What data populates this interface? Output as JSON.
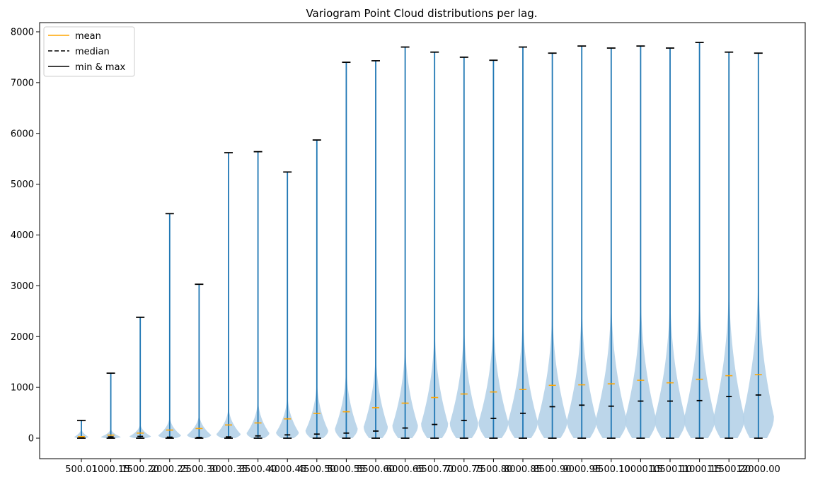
{
  "chart_data": {
    "type": "violin",
    "title": "Variogram Point Cloud distributions per lag.",
    "xlabel": "",
    "ylabel": "",
    "ylim": [
      -350,
      8200
    ],
    "yticks": [
      0,
      1000,
      2000,
      3000,
      4000,
      5000,
      6000,
      7000,
      8000
    ],
    "grid": false,
    "legend_position": "top-left",
    "legend": [
      {
        "label": "mean",
        "style": "solid",
        "color": "#ffa500"
      },
      {
        "label": "median",
        "style": "dashed",
        "color": "#000000"
      },
      {
        "label": "min & max",
        "style": "solid",
        "color": "#000000"
      }
    ],
    "colors": {
      "violin_body": "#b5d2e8",
      "center_line": "#1f77b4",
      "mean": "#ffa500",
      "median": "#000000",
      "extrema": "#000000"
    },
    "categories": [
      "500.01",
      "1000.15",
      "1500.20",
      "2000.25",
      "2500.30",
      "3000.35",
      "3500.40",
      "4000.45",
      "4500.50",
      "5000.55",
      "5500.60",
      "6000.65",
      "6500.70",
      "7000.75",
      "7500.80",
      "8000.85",
      "8500.90",
      "9000.95",
      "9500.10",
      "10000.15",
      "10500.10",
      "11000.15",
      "11500.20",
      "12000.00"
    ],
    "min": [
      0,
      0,
      0,
      0,
      0,
      0,
      0,
      0,
      0,
      0,
      0,
      0,
      0,
      0,
      0,
      0,
      0,
      0,
      0,
      0,
      0,
      0,
      0,
      0
    ],
    "max": [
      350,
      1280,
      2380,
      4420,
      3030,
      5620,
      5640,
      5240,
      5870,
      7400,
      7430,
      7700,
      7600,
      7500,
      7440,
      7700,
      7580,
      7720,
      7680,
      7720,
      7680,
      7790,
      7600,
      7580
    ],
    "mean": [
      30,
      60,
      100,
      160,
      190,
      260,
      300,
      380,
      490,
      520,
      600,
      690,
      800,
      870,
      910,
      960,
      1040,
      1050,
      1070,
      1140,
      1090,
      1160,
      1230,
      1250
    ],
    "median": [
      15,
      25,
      35,
      20,
      15,
      25,
      45,
      65,
      80,
      100,
      140,
      200,
      270,
      350,
      390,
      490,
      620,
      650,
      630,
      730,
      730,
      740,
      820,
      850
    ],
    "violin_height": [
      200,
      200,
      300,
      450,
      500,
      650,
      800,
      900,
      1200,
      1500,
      1800,
      2000,
      2300,
      2400,
      2500,
      2600,
      2700,
      2800,
      2900,
      3000,
      3000,
      3100,
      3200,
      3400
    ],
    "violin_halfwidth": [
      10,
      14,
      15,
      16,
      17,
      17,
      16,
      16,
      16,
      16,
      17,
      18,
      19,
      20,
      21,
      21,
      21,
      21,
      22,
      22,
      22,
      22,
      22,
      22
    ]
  }
}
